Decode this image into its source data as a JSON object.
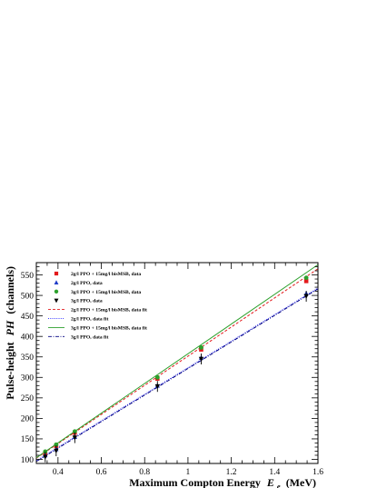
{
  "chart_data": {
    "type": "scatter",
    "xlabel": "Maximum Compton Energy",
    "xlabel_symbol": "E",
    "xlabel_subscript": "e",
    "xlabel_unit": "(MeV)",
    "ylabel": "Pulse-height",
    "ylabel_symbol": "PH",
    "ylabel_unit": "(channels)",
    "xlim": [
      0.3,
      1.6
    ],
    "ylim": [
      90,
      580
    ],
    "x_ticks": [
      "0.4",
      "0.6",
      "0.8",
      "1",
      "1.2",
      "1.4",
      "1.6"
    ],
    "y_ticks": [
      "100",
      "150",
      "200",
      "250",
      "300",
      "350",
      "400",
      "450",
      "500",
      "550"
    ],
    "grid": false,
    "legend_position": "top-left",
    "x": [
      0.341,
      0.3915,
      0.4775,
      0.859,
      1.061,
      1.546
    ],
    "series": [
      {
        "name": "2g/l PPO + 15mg/l bisMSB, data",
        "marker": "square",
        "color": "#e31a1c",
        "values": [
          116,
          133,
          165,
          297,
          368,
          535
        ]
      },
      {
        "name": "2g/l PPO, data",
        "marker": "triangle-up",
        "color": "#1f3cc8",
        "values": [
          110,
          125,
          155,
          280,
          348,
          505
        ]
      },
      {
        "name": "3g/l PPO + 15mg/l bisMSB, data",
        "marker": "circle",
        "color": "#2ca02c",
        "values": [
          119,
          136,
          168,
          300,
          373,
          543
        ]
      },
      {
        "name": "3g/l PPO, data",
        "marker": "triangle-down",
        "color": "#000000",
        "values": [
          106,
          121,
          153,
          278,
          345,
          498
        ]
      }
    ],
    "fits": [
      {
        "name": "2g/l PPO + 15mg/l bisMSB, data fit",
        "style": "dashed",
        "color": "#e31a1c",
        "y_at_xmin": 103,
        "y_at_xmax": 565
      },
      {
        "name": "2g/l PPO, data fit",
        "style": "dotted",
        "color": "#3b3bff",
        "y_at_xmin": 97,
        "y_at_xmax": 518
      },
      {
        "name": "3g/l PPO + 15mg/l bisMSB, data fit",
        "style": "solid",
        "color": "#2ca02c",
        "y_at_xmin": 104,
        "y_at_xmax": 575
      },
      {
        "name": "3g/l PPO, data fit",
        "style": "dashdot",
        "color": "#000080",
        "y_at_xmin": 95,
        "y_at_xmax": 516
      }
    ]
  }
}
